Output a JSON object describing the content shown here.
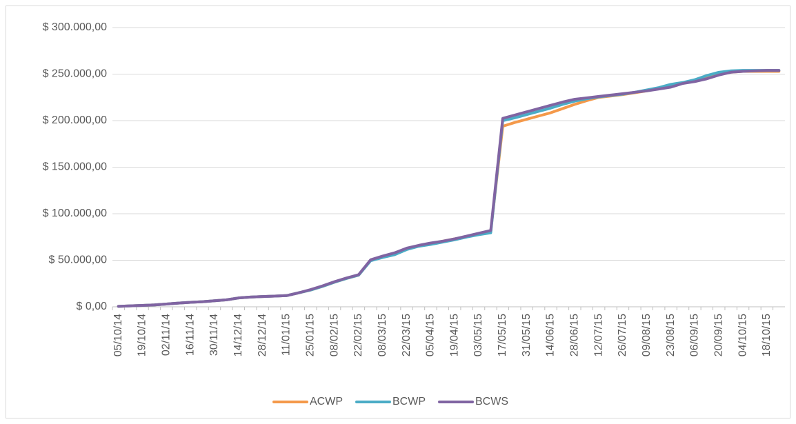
{
  "chart_data": {
    "type": "line",
    "categories": [
      "05/10/14",
      null,
      "19/10/14",
      null,
      "02/11/14",
      null,
      "16/11/14",
      null,
      "30/11/14",
      null,
      "14/12/14",
      null,
      "28/12/14",
      null,
      "11/01/15",
      null,
      "25/01/15",
      null,
      "08/02/15",
      null,
      "22/02/15",
      null,
      "08/03/15",
      null,
      "22/03/15",
      null,
      "05/04/15",
      null,
      "19/04/15",
      null,
      "03/05/15",
      null,
      "17/05/15",
      null,
      "31/05/15",
      null,
      "14/06/15",
      null,
      "28/06/15",
      null,
      "12/07/15",
      null,
      "26/07/15",
      null,
      "09/08/15",
      null,
      "23/08/15",
      null,
      "06/09/15",
      null,
      "20/09/15",
      null,
      "04/10/15",
      null,
      "18/10/15",
      null
    ],
    "series": [
      {
        "name": "ACWP",
        "color": "#f4994a",
        "values": [
          500,
          1000,
          1500,
          2000,
          3000,
          4000,
          4800,
          5500,
          6500,
          7500,
          9500,
          10500,
          11000,
          11500,
          12000,
          15000,
          18000,
          22000,
          26500,
          30500,
          34000,
          50000,
          54000,
          57500,
          62500,
          65500,
          68000,
          70500,
          73000,
          75500,
          78500,
          81000,
          194000,
          198000,
          201500,
          205000,
          208500,
          213000,
          217500,
          221500,
          225000,
          226500,
          228000,
          230000,
          232000,
          234500,
          238000,
          240500,
          243000,
          246500,
          250000,
          252000,
          253000,
          253000,
          253000,
          253000
        ]
      },
      {
        "name": "BCWP",
        "color": "#4bacc6",
        "values": [
          500,
          1000,
          1500,
          2000,
          3000,
          4000,
          4800,
          5500,
          6500,
          7500,
          9500,
          10500,
          11000,
          11500,
          12000,
          15000,
          18000,
          22000,
          26500,
          30500,
          34000,
          49500,
          53000,
          56000,
          61500,
          65000,
          67000,
          69500,
          72000,
          75000,
          77500,
          79500,
          200000,
          203000,
          206500,
          210000,
          213500,
          217500,
          221000,
          223500,
          225500,
          227000,
          228500,
          230500,
          233000,
          235500,
          239000,
          241000,
          244000,
          248500,
          252000,
          253500,
          254000,
          254000,
          254000,
          254000
        ]
      },
      {
        "name": "BCWS",
        "color": "#8064a2",
        "values": [
          500,
          1000,
          1500,
          2000,
          3000,
          4000,
          4800,
          5500,
          6500,
          7500,
          9500,
          10500,
          11000,
          11500,
          12000,
          15000,
          18500,
          22500,
          27000,
          31000,
          34500,
          50500,
          54500,
          58000,
          63000,
          66000,
          68500,
          70500,
          73000,
          76000,
          79000,
          82000,
          202500,
          206000,
          209500,
          213000,
          216500,
          220000,
          223000,
          224500,
          226000,
          227500,
          229000,
          230500,
          232000,
          234000,
          236000,
          240000,
          242000,
          245000,
          249000,
          252000,
          253000,
          253500,
          254000,
          254000
        ]
      }
    ],
    "ylim": [
      0,
      300000
    ],
    "yticks": [
      {
        "value": 0,
        "label": "$ 0,00"
      },
      {
        "value": 50000,
        "label": "$ 50.000,00"
      },
      {
        "value": 100000,
        "label": "$ 100.000,00"
      },
      {
        "value": 150000,
        "label": "$ 150.000,00"
      },
      {
        "value": 200000,
        "label": "$ 200.000,00"
      },
      {
        "value": 250000,
        "label": "$ 250.000,00"
      },
      {
        "value": 300000,
        "label": "$ 300.000,00"
      }
    ],
    "grid": true,
    "legend": "bottom"
  }
}
